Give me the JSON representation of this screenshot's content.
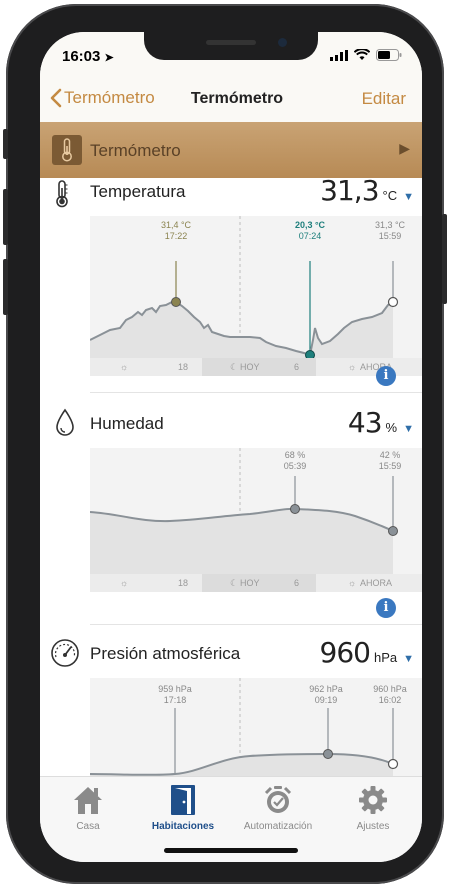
{
  "status": {
    "time": "16:03"
  },
  "nav": {
    "back_label": "Termómetro",
    "title": "Termómetro",
    "edit_label": "Editar"
  },
  "room": {
    "label": "Termómetro"
  },
  "sections": [
    {
      "title": "Temperatura",
      "value": "31,3",
      "unit": "°C",
      "annotations": [
        {
          "value": "31,4 °C",
          "time": "17:22"
        },
        {
          "value": "20,3 °C",
          "time": "07:24"
        },
        {
          "value": "31,3 °C",
          "time": "15:59"
        }
      ],
      "axis": {
        "left": "18",
        "today": "HOY",
        "mid": "6",
        "now": "AHORA"
      }
    },
    {
      "title": "Humedad",
      "value": "43",
      "unit": "%",
      "annotations": [
        {
          "value": "68 %",
          "time": "05:39"
        },
        {
          "value": "42 %",
          "time": "15:59"
        }
      ],
      "axis": {
        "left": "18",
        "today": "HOY",
        "mid": "6",
        "now": "AHORA"
      }
    },
    {
      "title": "Presión atmosférica",
      "value": "960",
      "unit": "hPa",
      "annotations": [
        {
          "value": "959 hPa",
          "time": "17:18"
        },
        {
          "value": "962 hPa",
          "time": "09:19"
        },
        {
          "value": "960 hPa",
          "time": "16:02"
        }
      ]
    }
  ],
  "tabs": [
    {
      "label": "Casa"
    },
    {
      "label": "Habitaciones"
    },
    {
      "label": "Automatización"
    },
    {
      "label": "Ajustes"
    }
  ],
  "colors": {
    "accent": "#c48a42",
    "blue": "#3a78c0",
    "line": "#8a9197",
    "teal": "#1e7f7c",
    "olive": "#8b8450"
  }
}
